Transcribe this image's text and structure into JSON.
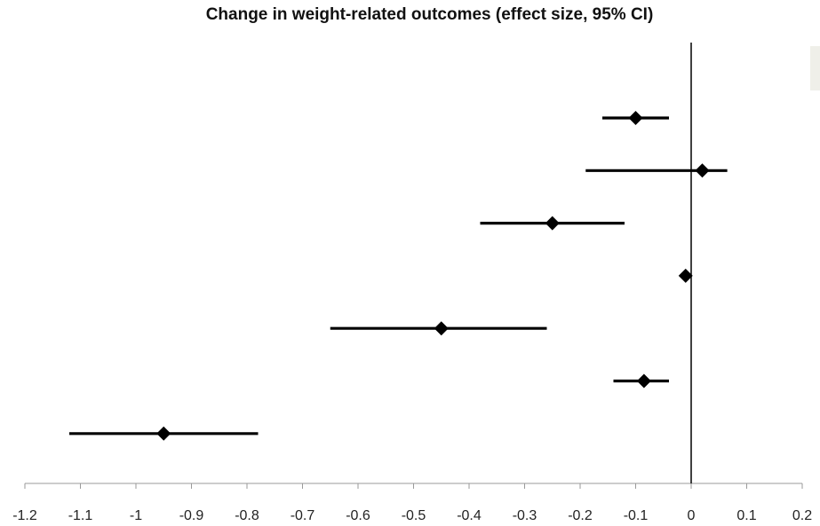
{
  "chart_data": {
    "type": "scatter",
    "title": "Change in weight-related outcomes (effect size, 95% CI)",
    "xlabel": "",
    "ylabel": "",
    "xlim": [
      -1.2,
      0.2
    ],
    "x_ticks": [
      -1.2,
      -1.1,
      -1,
      -0.9,
      -0.8,
      -0.7,
      -0.6,
      -0.5,
      -0.4,
      -0.3,
      -0.2,
      -0.1,
      0,
      0.1,
      0.2
    ],
    "x_tick_labels": [
      "-1.2",
      "-1.1",
      "-1",
      "-0.9",
      "-0.8",
      "-0.7",
      "-0.6",
      "-0.5",
      "-0.4",
      "-0.3",
      "-0.2",
      "-0.1",
      "0",
      "0.1",
      "0.2"
    ],
    "reference_line_x": 0,
    "grid": false,
    "series": [
      {
        "marker": "diamond",
        "color": "#000000",
        "points": [
          {
            "estimate": -0.1,
            "ci_low": -0.16,
            "ci_high": -0.04
          },
          {
            "estimate": 0.02,
            "ci_low": -0.19,
            "ci_high": 0.065
          },
          {
            "estimate": -0.25,
            "ci_low": -0.38,
            "ci_high": -0.12
          },
          {
            "estimate": -0.01,
            "ci_low": -0.01,
            "ci_high": -0.01
          },
          {
            "estimate": -0.45,
            "ci_low": -0.65,
            "ci_high": -0.26
          },
          {
            "estimate": -0.085,
            "ci_low": -0.14,
            "ci_high": -0.04
          },
          {
            "estimate": -0.95,
            "ci_low": -1.12,
            "ci_high": -0.78
          }
        ]
      }
    ]
  }
}
